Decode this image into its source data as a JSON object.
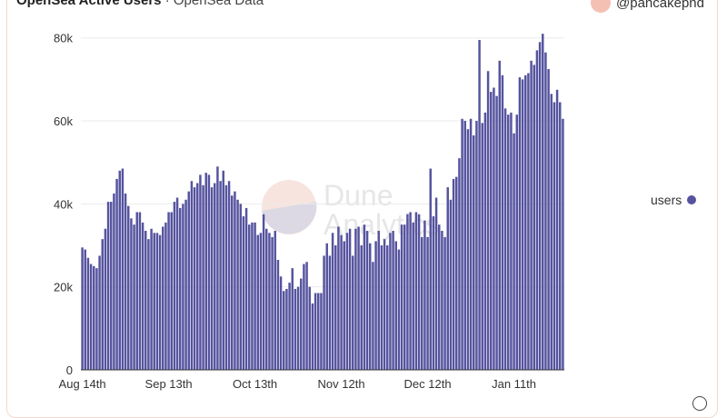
{
  "header": {
    "title": "OpenSea Active Users",
    "subtitle": "OpenSea Data",
    "author": "@pancakepnd"
  },
  "watermark": {
    "line1": "Dune",
    "line2": "Analytics"
  },
  "icons": {
    "avatar": "avatar-icon",
    "corner": "expand-icon"
  },
  "colors": {
    "bar": "#55539e",
    "grid": "#ebebeb",
    "axis": "#333333"
  },
  "chart_data": {
    "type": "bar",
    "series": [
      {
        "name": "users",
        "values": [
          29500,
          29000,
          27000,
          25500,
          25000,
          24500,
          27500,
          31500,
          34000,
          40500,
          40500,
          42500,
          46000,
          48000,
          48500,
          42500,
          39500,
          36500,
          35000,
          38000,
          38000,
          35500,
          33500,
          31500,
          34000,
          33000,
          33000,
          32500,
          34500,
          35500,
          38000,
          38000,
          40500,
          41500,
          39000,
          40000,
          41000,
          43000,
          45500,
          44000,
          45000,
          47000,
          44500,
          47500,
          47000,
          44000,
          45000,
          49000,
          45500,
          48000,
          44500,
          45500,
          42000,
          43000,
          41000,
          40000,
          37000,
          39000,
          35000,
          35500,
          35500,
          32500,
          33000,
          37500,
          34000,
          33000,
          32000,
          33500,
          26500,
          22500,
          19000,
          19500,
          21000,
          24500,
          19500,
          20000,
          22000,
          25500,
          26000,
          20000,
          16000,
          18500,
          18500,
          18500,
          27500,
          30500,
          27500,
          33000,
          30000,
          34500,
          32500,
          31000,
          33000,
          34000,
          27500,
          34000,
          34500,
          30000,
          35000,
          33500,
          30500,
          26000,
          31000,
          33500,
          30000,
          31500,
          30000,
          33000,
          33500,
          31000,
          29000,
          35000,
          35000,
          37500,
          38000,
          35500,
          38000,
          37500,
          32000,
          36000,
          32000,
          48500,
          37000,
          41500,
          35000,
          33500,
          32000,
          44000,
          41000,
          46000,
          46500,
          51000,
          60500,
          60000,
          58000,
          60500,
          56500,
          60000,
          79500,
          59500,
          62000,
          72000,
          67000,
          68000,
          66000,
          74500,
          71000,
          63000,
          61500,
          62000,
          57000,
          61500,
          70500,
          70000,
          71000,
          71500,
          74500,
          73500,
          77000,
          79000,
          81000,
          76500,
          72500,
          66500,
          64500,
          67500,
          64500,
          60500
        ]
      }
    ],
    "x_tick_labels": [
      "Aug 14th",
      "Sep 13th",
      "Oct 13th",
      "Nov 12th",
      "Dec 12th",
      "Jan 11th"
    ],
    "x_tick_indices": [
      0,
      30,
      60,
      90,
      120,
      150
    ],
    "y_ticks": [
      0,
      20000,
      40000,
      60000,
      80000
    ],
    "y_tick_labels": [
      "0",
      "20k",
      "40k",
      "60k",
      "80k"
    ],
    "ylim": [
      0,
      83000
    ],
    "grid": true,
    "legend": {
      "position": "right",
      "label": "users"
    }
  }
}
